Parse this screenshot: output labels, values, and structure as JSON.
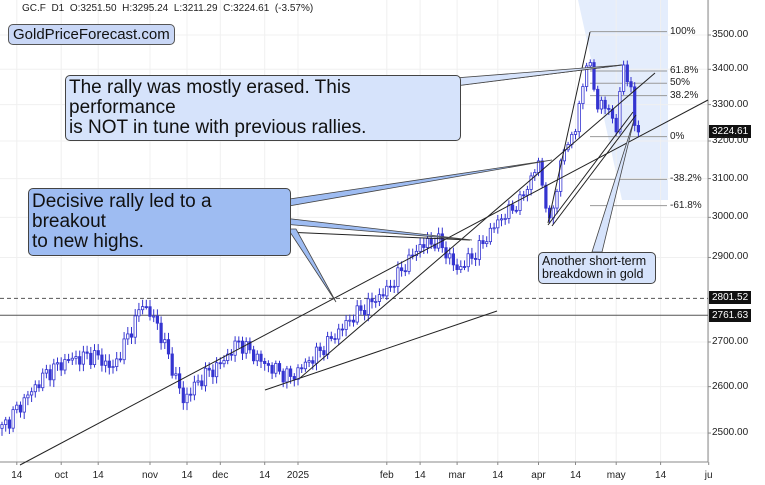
{
  "header": {
    "symbol": "GC.F",
    "timeframe": "D1",
    "open": "O:3251.50",
    "high": "H:3295.24",
    "low": "L:3211.29",
    "close": "C:3224.61",
    "change": "(-3.57%)"
  },
  "logo": "GoldPriceForecast.com",
  "annotations": {
    "rally_erased": [
      "The rally was mostly erased. This performance",
      "is NOT in tune with previous rallies."
    ],
    "decisive_rally": [
      "Decisive rally led to a breakout",
      "to new highs."
    ],
    "breakdown": [
      "Another short-term",
      "breakdown in gold"
    ]
  },
  "price_tags": {
    "last": "3224.61",
    "level1": "2801.52",
    "level2": "2761.63"
  },
  "colors": {
    "candle": "#3434d0",
    "callout_light": "#d6e3fb",
    "callout_dark": "#9ebcf2",
    "fib_zone": "#dde8fb"
  },
  "chart_data": {
    "type": "candlestick",
    "title": "GC.F D1",
    "yscale": "log",
    "ylim": [
      2435,
      3620
    ],
    "y_ticks": [
      "3500.00",
      "3400.00",
      "3300.00",
      "3200.00",
      "3100.00",
      "3000.00",
      "2900.00",
      "2700.00",
      "2600.00",
      "2500.00"
    ],
    "y_tick_values": [
      3500,
      3400,
      3300,
      3200,
      3100,
      3000,
      2900,
      2700,
      2600,
      2500
    ],
    "x_ticks": [
      "14",
      "oct",
      "14",
      "nov",
      "14",
      "dec",
      "14",
      "2025",
      "feb",
      "14",
      "mar",
      "14",
      "apr",
      "14",
      "may",
      "14",
      "ju"
    ],
    "x_tick_days": [
      4,
      16,
      26,
      40,
      50,
      59,
      71,
      80,
      104,
      113,
      123,
      134,
      145,
      155,
      166,
      178,
      191
    ],
    "close_waypoints": [
      [
        0,
        2510
      ],
      [
        5,
        2560
      ],
      [
        12,
        2630
      ],
      [
        18,
        2660
      ],
      [
        25,
        2670
      ],
      [
        30,
        2640
      ],
      [
        35,
        2730
      ],
      [
        38,
        2790
      ],
      [
        42,
        2740
      ],
      [
        49,
        2570
      ],
      [
        54,
        2620
      ],
      [
        59,
        2650
      ],
      [
        64,
        2700
      ],
      [
        71,
        2650
      ],
      [
        78,
        2620
      ],
      [
        86,
        2680
      ],
      [
        95,
        2760
      ],
      [
        104,
        2820
      ],
      [
        113,
        2930
      ],
      [
        118,
        2940
      ],
      [
        123,
        2870
      ],
      [
        128,
        2910
      ],
      [
        134,
        2990
      ],
      [
        140,
        3040
      ],
      [
        145,
        3140
      ],
      [
        148,
        2980
      ],
      [
        152,
        3180
      ],
      [
        155,
        3230
      ],
      [
        158,
        3420
      ],
      [
        159,
        3400
      ],
      [
        161,
        3300
      ],
      [
        164,
        3290
      ],
      [
        166,
        3230
      ],
      [
        168,
        3420
      ],
      [
        170,
        3330
      ],
      [
        171,
        3250
      ],
      [
        172,
        3224.61
      ]
    ],
    "fibonacci": [
      {
        "label": "100%",
        "price": 3510
      },
      {
        "label": "61.8%",
        "price": 3395
      },
      {
        "label": "50%",
        "price": 3360
      },
      {
        "label": "38.2%",
        "price": 3325
      },
      {
        "label": "0%",
        "price": 3212
      },
      {
        "label": "-38.2%",
        "price": 3098
      },
      {
        "label": "-61.8%",
        "price": 3030
      }
    ],
    "horizontal_levels": [
      {
        "price": 2801.52,
        "style": "dashed"
      },
      {
        "price": 2761.63,
        "style": "solid"
      }
    ]
  }
}
